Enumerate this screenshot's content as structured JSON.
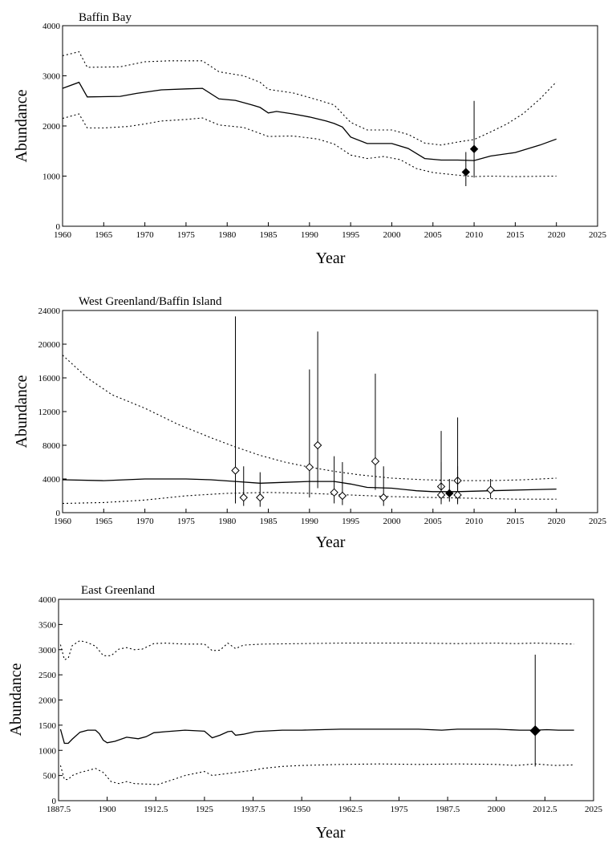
{
  "chart_data": [
    {
      "type": "line",
      "title": "Baffin Bay",
      "xlabel": "Year",
      "ylabel": "Abundance",
      "xlim": [
        1960,
        2025
      ],
      "ylim": [
        0,
        4000
      ],
      "xticks": [
        1960,
        1965,
        1970,
        1975,
        1980,
        1985,
        1990,
        1995,
        2000,
        2005,
        2010,
        2015,
        2020,
        2025
      ],
      "xtick_labels": [
        "1960",
        "1965",
        "1970",
        "1975",
        "1980",
        "1985",
        "1990",
        "1995",
        "2000",
        "2005",
        "2010",
        "2015",
        "2020",
        "2025"
      ],
      "yticks": [
        0,
        1000,
        2000,
        3000,
        4000
      ],
      "ytick_labels": [
        "0",
        "1000",
        "2000",
        "3000",
        "4000"
      ],
      "series": [
        {
          "style": "solid",
          "x": [
            1960,
            1962,
            1963,
            1967,
            1969,
            1972,
            1975,
            1977,
            1979,
            1981,
            1983,
            1984,
            1985,
            1986,
            1988,
            1990,
            1992,
            1993,
            1994,
            1995,
            1997,
            2000,
            2002,
            2004,
            2006,
            2008,
            2010,
            2012,
            2015,
            2018,
            2020
          ],
          "y": [
            2750,
            2870,
            2580,
            2590,
            2650,
            2720,
            2740,
            2750,
            2540,
            2510,
            2420,
            2370,
            2260,
            2290,
            2240,
            2180,
            2100,
            2050,
            1980,
            1780,
            1650,
            1650,
            1550,
            1350,
            1320,
            1320,
            1310,
            1400,
            1470,
            1620,
            1740
          ]
        },
        {
          "style": "dotted",
          "x": [
            1960,
            1962,
            1963,
            1967,
            1970,
            1973,
            1977,
            1979,
            1982,
            1984,
            1985,
            1988,
            1991,
            1993,
            1995,
            1997,
            2000,
            2002,
            2004,
            2006,
            2008,
            2010,
            2012,
            2014,
            2016,
            2018,
            2020
          ],
          "y": [
            3400,
            3480,
            3170,
            3180,
            3280,
            3300,
            3300,
            3080,
            3000,
            2870,
            2730,
            2660,
            2520,
            2420,
            2070,
            1920,
            1920,
            1830,
            1660,
            1620,
            1680,
            1730,
            1880,
            2040,
            2250,
            2540,
            2880
          ]
        },
        {
          "style": "dotted",
          "x": [
            1960,
            1962,
            1963,
            1965,
            1968,
            1970,
            1972,
            1975,
            1977,
            1979,
            1982,
            1985,
            1988,
            1991,
            1993,
            1995,
            1997,
            1999,
            2001,
            2003,
            2005,
            2008,
            2010,
            2012,
            2015,
            2020
          ],
          "y": [
            2150,
            2240,
            1960,
            1960,
            1990,
            2040,
            2100,
            2130,
            2160,
            2020,
            1970,
            1790,
            1800,
            1740,
            1640,
            1420,
            1350,
            1390,
            1330,
            1150,
            1070,
            1020,
            990,
            1000,
            990,
            1000
          ]
        }
      ],
      "points": [
        {
          "x": 2009,
          "y": 1080,
          "low": 800,
          "high": 1480,
          "filled": true
        },
        {
          "x": 2010,
          "y": 1540,
          "low": 970,
          "high": 2500,
          "filled": true
        }
      ]
    },
    {
      "type": "line",
      "title": "West Greenland/Baffin Island",
      "xlabel": "Year",
      "ylabel": "Abundance",
      "xlim": [
        1960,
        2025
      ],
      "ylim": [
        0,
        24000
      ],
      "xticks": [
        1960,
        1965,
        1970,
        1975,
        1980,
        1985,
        1990,
        1995,
        2000,
        2005,
        2010,
        2015,
        2020,
        2025
      ],
      "xtick_labels": [
        "1960",
        "1965",
        "1970",
        "1975",
        "1980",
        "1985",
        "1990",
        "1995",
        "2000",
        "2005",
        "2010",
        "2015",
        "2020",
        "2025"
      ],
      "yticks": [
        0,
        4000,
        8000,
        12000,
        16000,
        20000,
        24000
      ],
      "ytick_labels": [
        "0",
        "4000",
        "8000",
        "12000",
        "16000",
        "20000",
        "24000"
      ],
      "series": [
        {
          "style": "solid",
          "x": [
            1960,
            1965,
            1970,
            1975,
            1978,
            1981,
            1984,
            1987,
            1990,
            1993,
            1995,
            1997,
            2000,
            2003,
            2005,
            2008,
            2012,
            2016,
            2020
          ],
          "y": [
            3900,
            3800,
            4000,
            4000,
            3900,
            3700,
            3500,
            3600,
            3700,
            3700,
            3400,
            3000,
            2900,
            2600,
            2500,
            2500,
            2600,
            2700,
            2800
          ]
        },
        {
          "style": "dotted",
          "x": [
            1960,
            1963,
            1966,
            1970,
            1974,
            1978,
            1981,
            1984,
            1987,
            1990,
            1993,
            1996,
            2000,
            2004,
            2008,
            2012,
            2016,
            2020
          ],
          "y": [
            18700,
            16000,
            14000,
            12400,
            10500,
            8900,
            7800,
            6800,
            6000,
            5400,
            4900,
            4500,
            4100,
            3900,
            3800,
            3800,
            3900,
            4100
          ]
        },
        {
          "style": "dotted",
          "x": [
            1960,
            1965,
            1970,
            1975,
            1980,
            1985,
            1990,
            1995,
            2000,
            2005,
            2010,
            2015,
            2020
          ],
          "y": [
            1100,
            1200,
            1500,
            2000,
            2300,
            2400,
            2300,
            2100,
            1900,
            1800,
            1700,
            1600,
            1600
          ]
        }
      ],
      "points": [
        {
          "x": 1981,
          "y": 5000,
          "low": 1100,
          "high": 23300,
          "filled": false
        },
        {
          "x": 1982,
          "y": 1800,
          "low": 800,
          "high": 5500,
          "filled": false
        },
        {
          "x": 1984,
          "y": 1800,
          "low": 700,
          "high": 4800,
          "filled": false
        },
        {
          "x": 1990,
          "y": 5400,
          "low": 1800,
          "high": 17000,
          "filled": false
        },
        {
          "x": 1991,
          "y": 8000,
          "low": 2900,
          "high": 21500,
          "filled": false
        },
        {
          "x": 1993,
          "y": 2400,
          "low": 1100,
          "high": 6700,
          "filled": false
        },
        {
          "x": 1994,
          "y": 2000,
          "low": 900,
          "high": 6000,
          "filled": false
        },
        {
          "x": 1998,
          "y": 6100,
          "low": 2700,
          "high": 16500,
          "filled": false
        },
        {
          "x": 1999,
          "y": 1800,
          "low": 800,
          "high": 5500,
          "filled": false
        },
        {
          "x": 2006,
          "y": 3100,
          "low": 1400,
          "high": 9700,
          "filled": false
        },
        {
          "x": 2006,
          "y": 2100,
          "low": 1000,
          "high": 6000,
          "filled": false
        },
        {
          "x": 2007,
          "y": 2300,
          "low": 1300,
          "high": 4000,
          "filled": true
        },
        {
          "x": 2008,
          "y": 3800,
          "low": 1300,
          "high": 11300,
          "filled": false
        },
        {
          "x": 2008,
          "y": 2100,
          "low": 1000,
          "high": 5500,
          "filled": false
        },
        {
          "x": 2012,
          "y": 2700,
          "low": 1700,
          "high": 4000,
          "filled": false
        }
      ]
    },
    {
      "type": "line",
      "title": "East Greenland",
      "xlabel": "Year",
      "ylabel": "Abundance",
      "xlim": [
        1887.5,
        2025
      ],
      "ylim": [
        0,
        4000
      ],
      "xticks": [
        1887.5,
        1900,
        1912.5,
        1925,
        1937.5,
        1950,
        1962.5,
        1975,
        1987.5,
        2000,
        2012.5,
        2025
      ],
      "xtick_labels": [
        "1887.5",
        "1900",
        "1912.5",
        "1925",
        "1937.5",
        "1950",
        "1962.5",
        "1975",
        "1987.5",
        "2000",
        "2012.5",
        "2025"
      ],
      "yticks": [
        0,
        500,
        1000,
        1500,
        2000,
        2500,
        3000,
        3500,
        4000
      ],
      "ytick_labels": [
        "0",
        "500",
        "1000",
        "1500",
        "2000",
        "2500",
        "3000",
        "3500",
        "4000"
      ],
      "series": [
        {
          "style": "solid",
          "x": [
            1888,
            1889,
            1890,
            1891,
            1893,
            1895,
            1897,
            1898,
            1899,
            1900,
            1902,
            1905,
            1908,
            1910,
            1912,
            1915,
            1920,
            1925,
            1927,
            1929,
            1931,
            1932,
            1933,
            1935,
            1938,
            1940,
            1945,
            1950,
            1955,
            1960,
            1970,
            1980,
            1983,
            1986,
            1990,
            1995,
            2000,
            2003,
            2006,
            2010,
            2013,
            2016,
            2020
          ],
          "y": [
            1420,
            1140,
            1140,
            1220,
            1360,
            1400,
            1400,
            1330,
            1200,
            1150,
            1180,
            1260,
            1230,
            1270,
            1350,
            1370,
            1400,
            1380,
            1250,
            1300,
            1370,
            1380,
            1300,
            1320,
            1370,
            1380,
            1400,
            1400,
            1410,
            1420,
            1420,
            1420,
            1410,
            1400,
            1420,
            1420,
            1420,
            1410,
            1400,
            1400,
            1410,
            1400,
            1400
          ]
        },
        {
          "style": "dotted",
          "x": [
            1888,
            1889,
            1890,
            1891,
            1893,
            1895,
            1897,
            1899,
            1901,
            1903,
            1905,
            1907,
            1909,
            1912,
            1915,
            1920,
            1925,
            1927,
            1929,
            1931,
            1933,
            1935,
            1940,
            1950,
            1960,
            1970,
            1980,
            1990,
            2000,
            2005,
            2010,
            2015,
            2020
          ],
          "y": [
            3100,
            2800,
            2830,
            3080,
            3180,
            3140,
            3070,
            2880,
            2880,
            3010,
            3040,
            3000,
            3010,
            3120,
            3130,
            3110,
            3110,
            2980,
            2990,
            3130,
            3020,
            3090,
            3110,
            3120,
            3130,
            3130,
            3130,
            3120,
            3130,
            3120,
            3130,
            3120,
            3110
          ]
        },
        {
          "style": "dotted",
          "x": [
            1888,
            1889,
            1890,
            1891,
            1893,
            1895,
            1897,
            1899,
            1901,
            1903,
            1905,
            1907,
            1910,
            1913,
            1917,
            1920,
            1925,
            1927,
            1930,
            1933,
            1937,
            1940,
            1945,
            1950,
            1960,
            1970,
            1980,
            1990,
            2000,
            2005,
            2010,
            2015,
            2020
          ],
          "y": [
            700,
            420,
            420,
            500,
            560,
            600,
            640,
            560,
            380,
            340,
            380,
            340,
            330,
            320,
            420,
            500,
            580,
            500,
            530,
            560,
            600,
            640,
            680,
            700,
            720,
            730,
            720,
            730,
            720,
            700,
            730,
            700,
            710
          ]
        }
      ],
      "points": [
        {
          "x": 2010,
          "y": 1390,
          "low": 680,
          "high": 2900,
          "filled": true
        }
      ]
    }
  ]
}
